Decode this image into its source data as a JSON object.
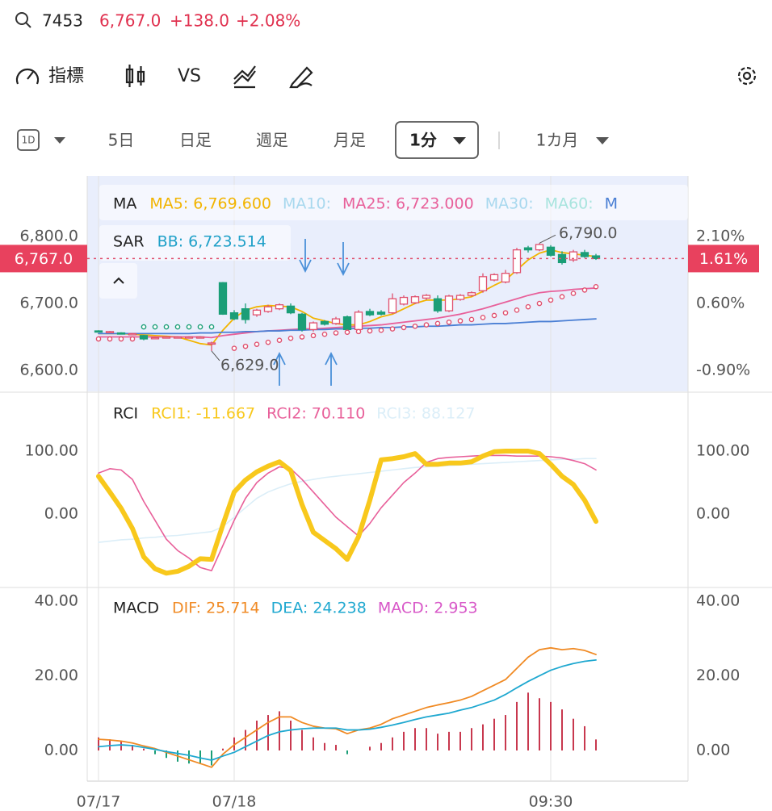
{
  "header": {
    "symbol": "7453",
    "price": "6,767.0",
    "change": "+138.0",
    "change_pct": "+2.08%"
  },
  "toolbar": {
    "indicators": "指標",
    "compare": "VS"
  },
  "timeframes": {
    "interval_icon": "1D",
    "items": [
      "5日",
      "日足",
      "週足",
      "月足"
    ],
    "selected": "1分",
    "range": "1カ月"
  },
  "chart_data": [
    {
      "type": "candlestick",
      "title": "MA",
      "open": [
        6659,
        6657,
        6656,
        6654,
        6652,
        6648,
        6650,
        6650,
        6650,
        6650,
        6641,
        6731,
        6686,
        6692,
        6683,
        6688,
        6692,
        6696,
        6684,
        6661,
        6673,
        6670,
        6680,
        6661,
        6688,
        6687,
        6686,
        6699,
        6701,
        6708,
        6707,
        6689,
        6706,
        6712,
        6719,
        6735,
        6732,
        6746,
        6783,
        6780,
        6784,
        6773,
        6765,
        6776,
        6771
      ],
      "high": [
        6660,
        6659,
        6657,
        6656,
        6653,
        6650,
        6651,
        6651,
        6651,
        6651,
        6643,
        6732,
        6690,
        6700,
        6692,
        6698,
        6700,
        6700,
        6686,
        6673,
        6675,
        6680,
        6682,
        6690,
        6692,
        6690,
        6715,
        6712,
        6712,
        6714,
        6712,
        6713,
        6714,
        6718,
        6745,
        6745,
        6750,
        6783,
        6786,
        6790,
        6787,
        6778,
        6780,
        6780,
        6774
      ],
      "low": [
        6657,
        6656,
        6654,
        6653,
        6645,
        6647,
        6649,
        6649,
        6649,
        6649,
        6629,
        6683,
        6675,
        6670,
        6680,
        6686,
        6690,
        6684,
        6658,
        6658,
        6667,
        6668,
        6659,
        6659,
        6681,
        6682,
        6684,
        6697,
        6699,
        6705,
        6686,
        6687,
        6704,
        6710,
        6716,
        6733,
        6730,
        6744,
        6776,
        6778,
        6770,
        6758,
        6762,
        6768,
        6765
      ],
      "close": [
        6658,
        6658,
        6655,
        6655,
        6647,
        6649,
        6650,
        6650,
        6650,
        6650,
        6641,
        6684,
        6677,
        6676,
        6690,
        6695,
        6698,
        6686,
        6661,
        6671,
        6669,
        6677,
        6661,
        6687,
        6683,
        6684,
        6707,
        6709,
        6710,
        6712,
        6689,
        6711,
        6712,
        6716,
        6740,
        6743,
        6745,
        6780,
        6780,
        6788,
        6772,
        6761,
        6777,
        6770,
        6767
      ],
      "up_color": "#e0506e",
      "down_color": "#1a9e77",
      "series": [
        {
          "label": "MA5: 6,769.600",
          "color": "#f2b400",
          "values": [
            6655,
            6655,
            6655,
            6654,
            6653,
            6652,
            6651,
            6650,
            6645,
            6640,
            6638,
            6660,
            6678,
            6690,
            6695,
            6697,
            6696,
            6695,
            6688,
            6678,
            6674,
            6670,
            6668,
            6668,
            6673,
            6680,
            6684,
            6692,
            6700,
            6705,
            6705,
            6705,
            6707,
            6710,
            6718,
            6727,
            6735,
            6750,
            6765,
            6775,
            6780,
            6776,
            6774,
            6772,
            6770
          ]
        },
        {
          "label": "MA10:",
          "color": "#a8d8ee"
        },
        {
          "label": "MA25: 6,723.000",
          "color": "#e8609a",
          "values": [
            6650,
            6650,
            6650,
            6650,
            6650,
            6650,
            6650,
            6650,
            6650,
            6650,
            6649,
            6652,
            6654,
            6656,
            6658,
            6659,
            6660,
            6661,
            6662,
            6662,
            6663,
            6664,
            6665,
            6666,
            6667,
            6668,
            6670,
            6672,
            6674,
            6676,
            6678,
            6681,
            6684,
            6688,
            6692,
            6697,
            6702,
            6707,
            6712,
            6716,
            6718,
            6719,
            6721,
            6722,
            6723
          ]
        },
        {
          "label": "MA30:",
          "color": "#a8d8ee"
        },
        {
          "label": "MA60:",
          "color": "#a8e4de"
        },
        {
          "label": "M",
          "color": "#4a7fd4",
          "values": [
            6655,
            6655,
            6655,
            6655,
            6655,
            6655,
            6655,
            6655,
            6655,
            6656,
            6656,
            6657,
            6657,
            6658,
            6658,
            6659,
            6659,
            6660,
            6660,
            6661,
            6661,
            6662,
            6662,
            6663,
            6663,
            6664,
            6664,
            6665,
            6665,
            6666,
            6666,
            6667,
            6668,
            6668,
            6669,
            6670,
            6670,
            6671,
            6672,
            6673,
            6673,
            6674,
            6675,
            6676,
            6677
          ]
        }
      ],
      "sar": {
        "title": "SAR",
        "up_color": "#e0506e",
        "down_color": "#1a9e77",
        "values": [
          6647,
          6647,
          6647,
          6647,
          6665,
          6665,
          6665,
          6665,
          6665,
          6665,
          6665,
          null,
          6633,
          6636,
          6639,
          6642,
          6645,
          6648,
          6650,
          6652,
          6654,
          6656,
          6657,
          6658,
          6659,
          6660,
          6662,
          6664,
          6666,
          6668,
          6670,
          6672,
          6674,
          6676,
          6679,
          6682,
          6686,
          6690,
          6695,
          6700,
          6705,
          6710,
          6715,
          6720,
          6725
        ]
      },
      "bb_label": "BB: 6,723.514",
      "bb_color": "#1fa0c8",
      "high_label": "6,790.0",
      "low_label": "6,629.0",
      "last_price": {
        "value": 6767,
        "label": "6,767.0",
        "y2_label": "1.61%"
      },
      "ylim": [
        6568.7,
        6890.4
      ],
      "yticks": [
        {
          "value": 6800,
          "label": "6,800.0"
        },
        {
          "value": 6700,
          "label": "6,700.0"
        },
        {
          "value": 6600,
          "label": "6,600.0"
        }
      ],
      "y2lim": [
        -1.37,
        3.455
      ],
      "y2ticks": [
        {
          "value": 2.1,
          "label": "2.10%"
        },
        {
          "value": 0.6,
          "label": "0.60%"
        },
        {
          "value": -0.9,
          "label": "-0.90%"
        }
      ]
    },
    {
      "type": "line",
      "title": "RCI",
      "series": [
        {
          "label": "RCI1: -11.667",
          "color": "#f8c81c",
          "values": [
            60,
            35,
            9,
            -23,
            -68,
            -87,
            -94,
            -91,
            -83,
            -71,
            -72,
            -17,
            35,
            54,
            67,
            76,
            83,
            69,
            15,
            -29,
            -42,
            -55,
            -72,
            -36,
            22,
            86,
            88,
            91,
            96,
            79,
            79,
            81,
            81,
            83,
            92,
            99,
            100,
            100,
            100,
            96,
            79,
            60,
            47,
            22,
            -11.667
          ]
        },
        {
          "label": "RCI2: 70.110",
          "color": "#e8609a",
          "values": [
            65,
            72,
            70,
            55,
            20,
            -10,
            -40,
            -58,
            -70,
            -85,
            -90,
            -50,
            -10,
            25,
            50,
            65,
            75,
            72,
            55,
            35,
            15,
            -5,
            -20,
            -35,
            -15,
            10,
            30,
            50,
            65,
            82,
            88,
            90,
            91,
            92,
            93,
            93,
            93,
            92,
            92,
            92,
            91,
            89,
            85,
            80,
            70.11
          ]
        },
        {
          "label": "RCI3: 88.127",
          "color": "#dbeef8",
          "values": [
            -45,
            -43,
            -41,
            -40,
            -38,
            -37,
            -35,
            -34,
            -32,
            -30,
            -28,
            -20,
            -5,
            10,
            25,
            35,
            42,
            48,
            52,
            55,
            58,
            60,
            62,
            64,
            66,
            68,
            70,
            72,
            74,
            75,
            76,
            77,
            78,
            79,
            80,
            81,
            82,
            83,
            84,
            85,
            86,
            87,
            87,
            88,
            88.127
          ]
        }
      ],
      "ylim": [
        -115.4,
        192.3
      ],
      "yticks": [
        {
          "value": 100,
          "label": "100.00"
        },
        {
          "value": 0,
          "label": "0.00"
        }
      ]
    },
    {
      "type": "macd",
      "title": "MACD",
      "categories": [
        "07/17",
        null,
        null,
        null,
        null,
        null,
        null,
        null,
        null,
        null,
        null,
        null,
        "07/18",
        null,
        null,
        null,
        null,
        null,
        null,
        null,
        null,
        null,
        null,
        null,
        null,
        null,
        null,
        null,
        null,
        null,
        null,
        null,
        null,
        null,
        null,
        null,
        null,
        null,
        null,
        null,
        "09:30",
        null,
        null,
        null,
        null
      ],
      "series": [
        {
          "label": "DIF: 25.714",
          "color": "#f08a24",
          "values": [
            3,
            2.8,
            2.5,
            2,
            1.2,
            0.5,
            -0.5,
            -1.5,
            -2.5,
            -3.5,
            -4.5,
            -1,
            1.5,
            3.5,
            5.5,
            7.5,
            9,
            9,
            7.5,
            6.5,
            6,
            5.8,
            4.5,
            5.5,
            6,
            7,
            8.5,
            9.5,
            10.5,
            11.5,
            12.2,
            12.8,
            13.5,
            14.5,
            16,
            17.5,
            19,
            22,
            25,
            27,
            27.5,
            27,
            27.3,
            26.8,
            25.714
          ]
        },
        {
          "label": "DEA: 24.238",
          "color": "#1fa8d0",
          "values": [
            1,
            1.3,
            1.5,
            1.3,
            0.8,
            0.3,
            -0.3,
            -0.8,
            -1.3,
            -2,
            -2.6,
            -1.5,
            -0.5,
            1,
            2.5,
            4,
            5,
            5.5,
            5.8,
            6,
            6,
            6,
            5.5,
            5.5,
            5.7,
            6.2,
            6.8,
            7.5,
            8.3,
            9,
            9.5,
            10,
            10.8,
            11.5,
            12.5,
            13.5,
            15,
            16.8,
            18.5,
            20,
            21.5,
            22.5,
            23.3,
            23.9,
            24.238
          ]
        }
      ],
      "bars": {
        "label": "MACD: 2.953",
        "color": "#d858c8",
        "up_color": "#c8384e",
        "down_color": "#1a9e77",
        "values": [
          3.5,
          3,
          2.5,
          1.5,
          0.5,
          -1,
          -2,
          -3,
          -3.5,
          -3.5,
          -4,
          0.5,
          3.5,
          5.5,
          8,
          9.5,
          10.5,
          8,
          5.5,
          3.5,
          2,
          1.5,
          -1,
          0,
          1,
          2,
          3.5,
          5,
          6,
          6,
          4.5,
          5,
          5,
          6,
          7,
          8.5,
          9.5,
          13,
          15.5,
          14,
          13,
          11,
          8.5,
          6.5,
          2.953
        ]
      },
      "ylim": [
        -8.22,
        43.46
      ],
      "yticks": [
        {
          "value": 40,
          "label": "40.00"
        },
        {
          "value": 20,
          "label": "20.00"
        },
        {
          "value": 0,
          "label": "0.00"
        }
      ]
    }
  ]
}
